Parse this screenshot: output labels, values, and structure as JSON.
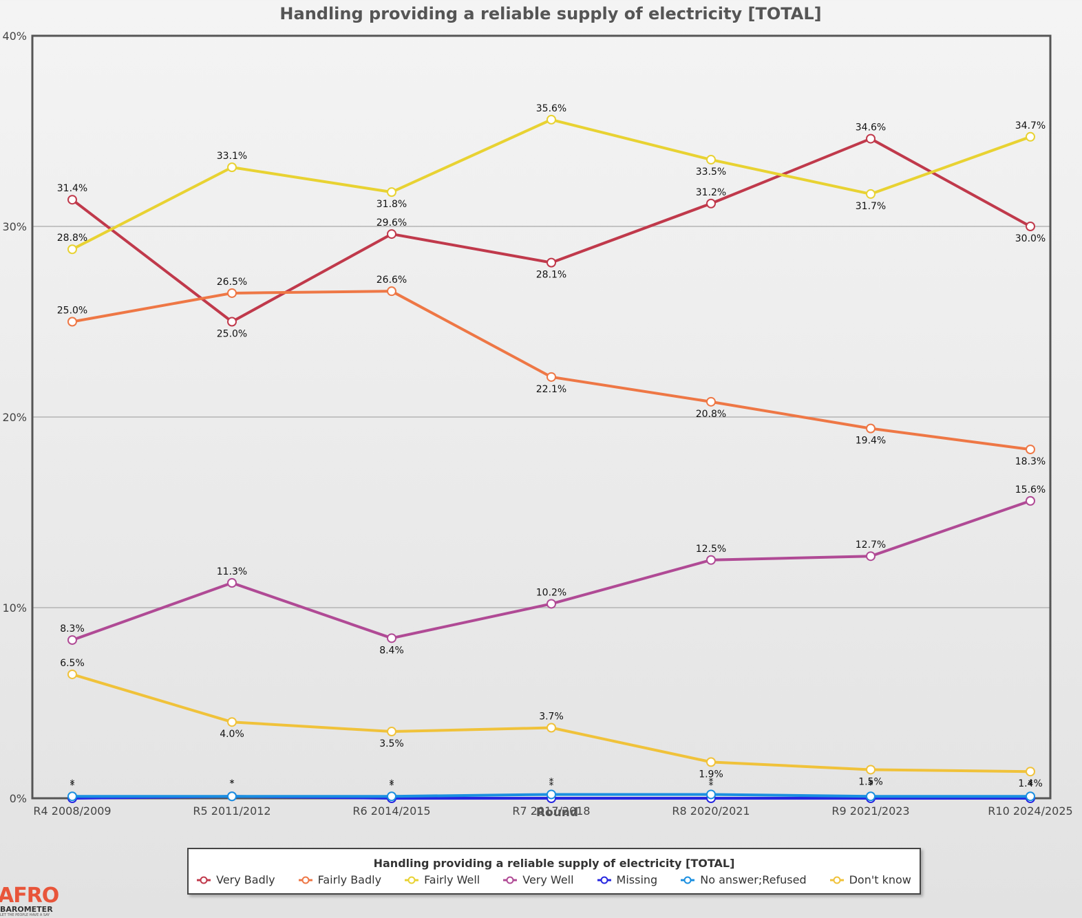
{
  "chart_data": {
    "type": "line",
    "title": "Handling providing a reliable supply of electricity [TOTAL]",
    "xlabel": "Round",
    "ylabel": "",
    "ylim": [
      0,
      40
    ],
    "y_ticks": [
      "0%",
      "10%",
      "20%",
      "30%",
      "40%"
    ],
    "grid": true,
    "legend_placement": "bottom",
    "legend_title": "Handling providing a reliable supply of electricity [TOTAL]",
    "categories": [
      "R4 2008/2009",
      "R5 2011/2012",
      "R6 2014/2015",
      "R7 2017/2018",
      "R8 2020/2021",
      "R9 2021/2023",
      "R10 2024/2025"
    ],
    "series": [
      {
        "name": "Very Badly",
        "color": "#c0394b",
        "values": [
          31.4,
          25.0,
          29.6,
          28.1,
          31.2,
          34.6,
          30.0
        ],
        "labels": [
          "31.4%",
          "25.0%",
          "29.6%",
          "28.1%",
          "31.2%",
          "34.6%",
          "30.0%"
        ],
        "label_pos": [
          "above",
          "below",
          "above",
          "below",
          "above",
          "above",
          "below"
        ]
      },
      {
        "name": "Fairly Badly",
        "color": "#ee7745",
        "values": [
          25.0,
          26.5,
          26.6,
          22.1,
          20.8,
          19.4,
          18.3
        ],
        "labels": [
          "25.0%",
          "26.5%",
          "26.6%",
          "22.1%",
          "20.8%",
          "19.4%",
          "18.3%"
        ],
        "label_pos": [
          "above",
          "above",
          "above",
          "below",
          "below",
          "below",
          "below"
        ]
      },
      {
        "name": "Fairly Well",
        "color": "#e8d232",
        "values": [
          28.8,
          33.1,
          31.8,
          35.6,
          33.5,
          31.7,
          34.7
        ],
        "labels": [
          "28.8%",
          "33.1%",
          "31.8%",
          "35.6%",
          "33.5%",
          "31.7%",
          "34.7%"
        ],
        "label_pos": [
          "above",
          "above",
          "below",
          "above",
          "below",
          "below",
          "above"
        ]
      },
      {
        "name": "Very Well",
        "color": "#b04a95",
        "values": [
          8.3,
          11.3,
          8.4,
          10.2,
          12.5,
          12.7,
          15.6
        ],
        "labels": [
          "8.3%",
          "11.3%",
          "8.4%",
          "10.2%",
          "12.5%",
          "12.7%",
          "15.6%"
        ],
        "label_pos": [
          "above",
          "above",
          "below",
          "above",
          "above",
          "above",
          "above"
        ]
      },
      {
        "name": "Missing",
        "color": "#2626e0",
        "values": [
          0.0,
          0.1,
          0.0,
          0.0,
          0.0,
          0.0,
          0.0
        ],
        "labels": [
          "*",
          "*",
          "*",
          "*",
          "*",
          "*",
          "*"
        ],
        "label_pos": [
          "above",
          "above",
          "above",
          "above",
          "above",
          "above",
          "above"
        ]
      },
      {
        "name": "No answer;Refused",
        "color": "#1a8fe0",
        "values": [
          0.1,
          0.1,
          0.1,
          0.2,
          0.2,
          0.1,
          0.1
        ],
        "labels": [
          "*",
          "*",
          "*",
          "*",
          "*",
          "*",
          "*"
        ],
        "label_pos": [
          "above",
          "above",
          "above",
          "above",
          "above",
          "above",
          "above"
        ]
      },
      {
        "name": "Don't know",
        "color": "#f0c23a",
        "values": [
          6.5,
          4.0,
          3.5,
          3.7,
          1.9,
          1.5,
          1.4
        ],
        "labels": [
          "6.5%",
          "4.0%",
          "3.5%",
          "3.7%",
          "1.9%",
          "1.5%",
          "1.4%"
        ],
        "label_pos": [
          "above",
          "below",
          "below",
          "above",
          "below",
          "below",
          "below"
        ]
      }
    ]
  },
  "logo": {
    "text": "AFRO",
    "subtext": "BAROMETER",
    "tagline": "LET THE PEOPLE HAVE A SAY"
  }
}
